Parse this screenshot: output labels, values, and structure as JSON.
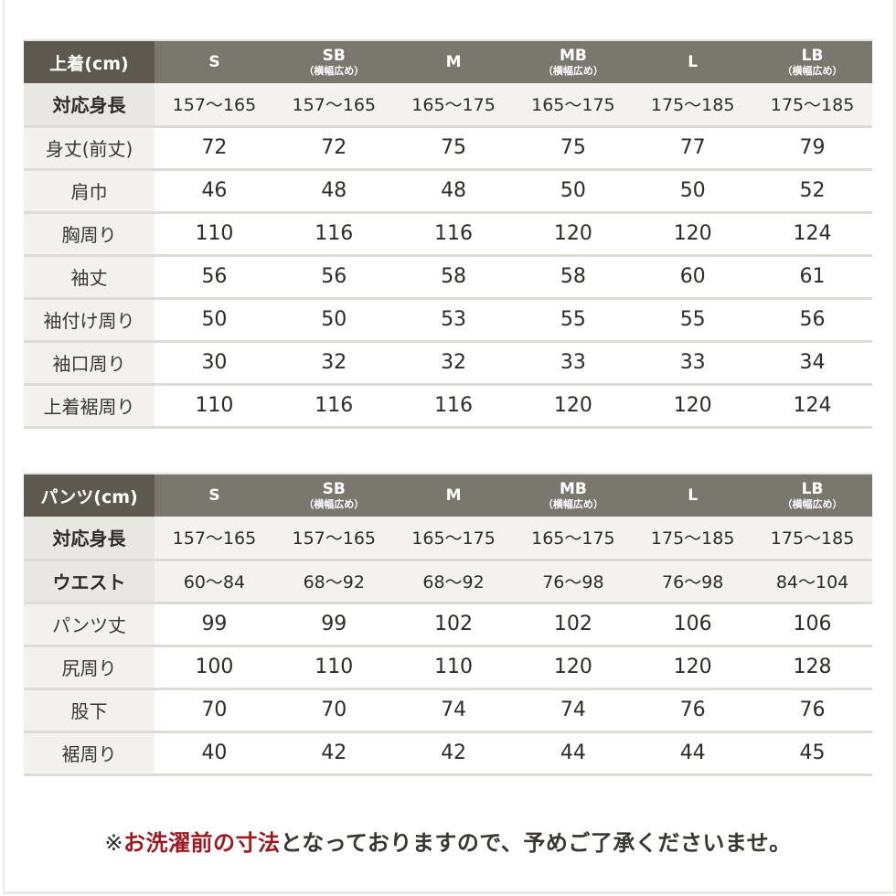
{
  "sizes": [
    {
      "code": "S",
      "sub": ""
    },
    {
      "code": "SB",
      "sub": "（横幅広め）"
    },
    {
      "code": "M",
      "sub": ""
    },
    {
      "code": "MB",
      "sub": "（横幅広め）"
    },
    {
      "code": "L",
      "sub": ""
    },
    {
      "code": "LB",
      "sub": "（横幅広め）"
    }
  ],
  "top_table": {
    "title": "上着(cm)",
    "rows": [
      {
        "label": "対応身長",
        "key": true,
        "values": [
          "157〜165",
          "157〜165",
          "165〜175",
          "165〜175",
          "175〜185",
          "175〜185"
        ]
      },
      {
        "label": "身丈(前丈)",
        "key": false,
        "values": [
          "72",
          "72",
          "75",
          "75",
          "77",
          "79"
        ]
      },
      {
        "label": "肩巾",
        "key": false,
        "values": [
          "46",
          "48",
          "48",
          "50",
          "50",
          "52"
        ]
      },
      {
        "label": "胸周り",
        "key": false,
        "values": [
          "110",
          "116",
          "116",
          "120",
          "120",
          "124"
        ]
      },
      {
        "label": "袖丈",
        "key": false,
        "values": [
          "56",
          "56",
          "58",
          "58",
          "60",
          "61"
        ]
      },
      {
        "label": "袖付け周り",
        "key": false,
        "values": [
          "50",
          "50",
          "53",
          "55",
          "55",
          "56"
        ]
      },
      {
        "label": "袖口周り",
        "key": false,
        "values": [
          "30",
          "32",
          "32",
          "33",
          "33",
          "34"
        ]
      },
      {
        "label": "上着裾周り",
        "key": false,
        "values": [
          "110",
          "116",
          "116",
          "120",
          "120",
          "124"
        ]
      }
    ]
  },
  "pants_table": {
    "title": "パンツ(cm)",
    "rows": [
      {
        "label": "対応身長",
        "key": true,
        "values": [
          "157〜165",
          "157〜165",
          "165〜175",
          "165〜175",
          "175〜185",
          "175〜185"
        ]
      },
      {
        "label": "ウエスト",
        "key": true,
        "values": [
          "60〜84",
          "68〜92",
          "68〜92",
          "76〜98",
          "76〜98",
          "84〜104"
        ]
      },
      {
        "label": "パンツ丈",
        "key": false,
        "values": [
          "99",
          "99",
          "102",
          "102",
          "106",
          "106"
        ]
      },
      {
        "label": "尻周り",
        "key": false,
        "values": [
          "100",
          "110",
          "110",
          "120",
          "120",
          "128"
        ]
      },
      {
        "label": "股下",
        "key": false,
        "values": [
          "70",
          "70",
          "74",
          "74",
          "76",
          "76"
        ]
      },
      {
        "label": "裾周り",
        "key": false,
        "values": [
          "40",
          "42",
          "42",
          "44",
          "44",
          "45"
        ]
      }
    ]
  },
  "note": {
    "mark": "※",
    "emphasis": "お洗濯前の寸法",
    "rest": "となっておりますので、予めご了承くださいませ。"
  },
  "colors": {
    "header_corner": "#5d594f",
    "header_size": "#7a776e",
    "emphasis_red": "#9a1c22"
  }
}
